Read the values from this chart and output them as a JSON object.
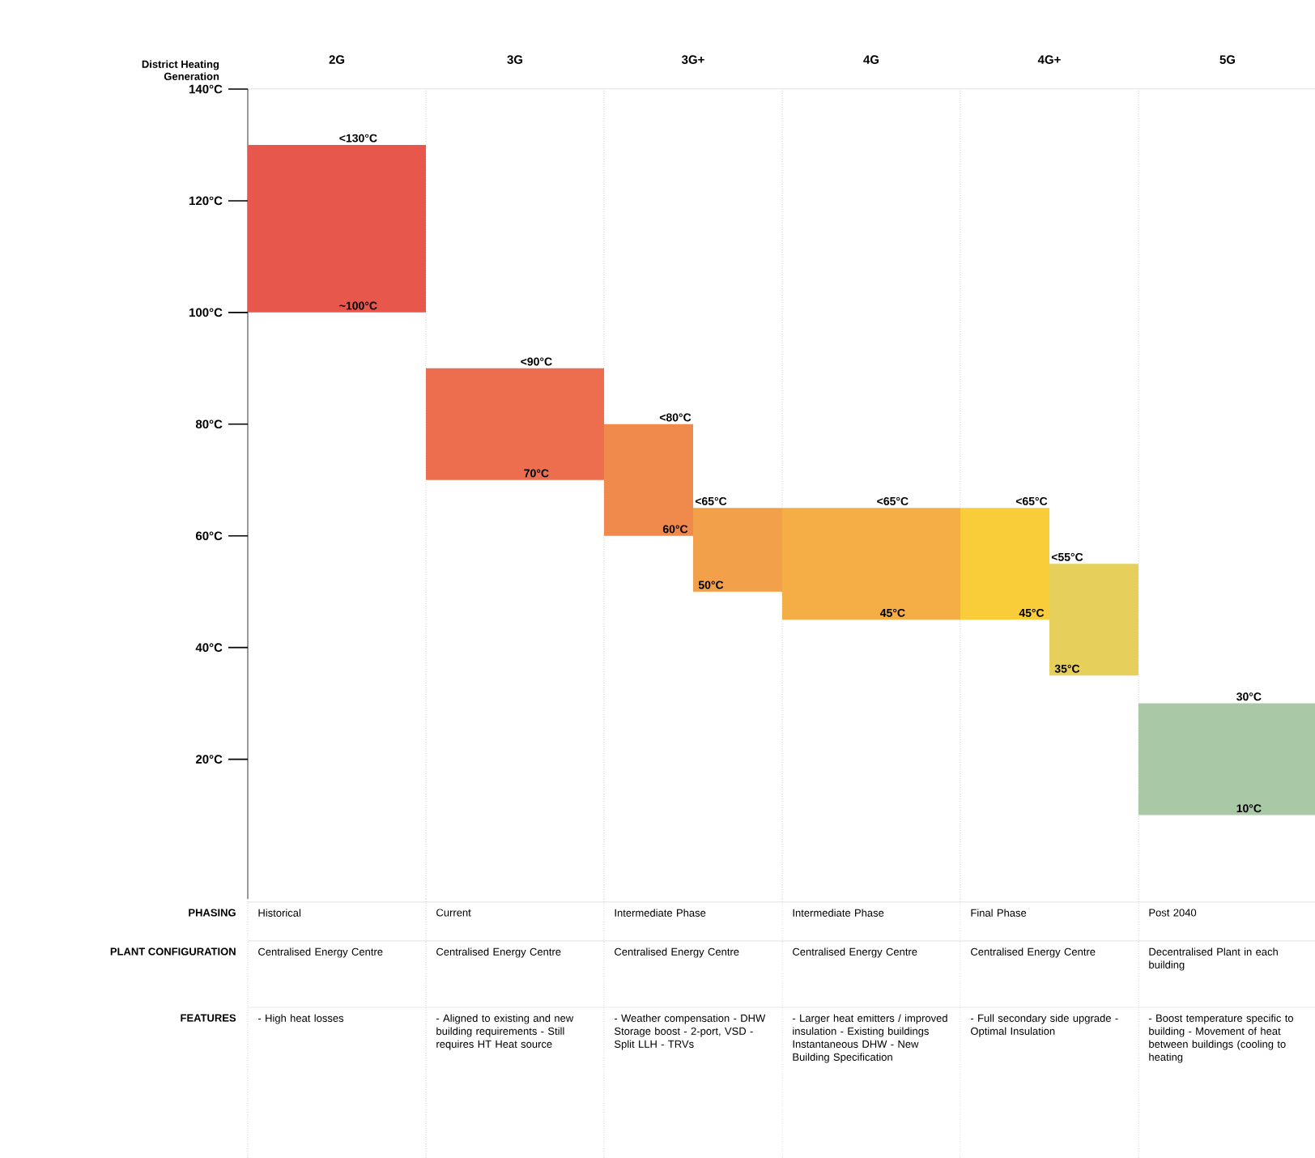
{
  "chart_data": {
    "type": "bar",
    "xlabel": "District Heating Generation",
    "categories": [
      "2G",
      "3G",
      "3G+",
      "4G",
      "4G+",
      "5G"
    ],
    "series": [
      {
        "base": [
          100,
          70,
          60,
          45,
          45,
          10
        ],
        "values": [
          30,
          20,
          20,
          20,
          20,
          20
        ],
        "colors": [
          "#e8574c",
          "#ec6e4e",
          "#f08a4c",
          "#f5ad46",
          "#f9cc3a",
          "#a9c8a6"
        ]
      },
      {
        "base": [
          null,
          null,
          50,
          null,
          35,
          null
        ],
        "values": [
          null,
          null,
          15,
          null,
          20,
          null
        ],
        "colors": [
          "#ffffff",
          "#ffffff",
          "#f2a04a",
          "#ffffff",
          "#e6cf5a",
          "#ffffff"
        ]
      }
    ],
    "ylim": [
      -5,
      140
    ],
    "yticks": [
      {
        "value": 20,
        "label": "20°C"
      },
      {
        "value": 40,
        "label": "40°C"
      },
      {
        "value": 60,
        "label": "60°C"
      },
      {
        "value": 80,
        "label": "80°C"
      },
      {
        "value": 100,
        "label": "100°C"
      },
      {
        "value": 120,
        "label": "120°C"
      },
      {
        "value": 140,
        "label": "140°C"
      }
    ],
    "grid": "x",
    "annotations": [
      {
        "text": "<130°C",
        "x": "2G",
        "y": 130
      },
      {
        "text": "~100°C",
        "x": "2G",
        "y": 100
      },
      {
        "text": "<90°C",
        "x": "3G",
        "y": 90
      },
      {
        "text": "70°C",
        "x": "3G",
        "y": 70
      },
      {
        "text": "<80°C",
        "x": "3G+",
        "y": 80
      },
      {
        "text": "60°C",
        "x": "3G+",
        "y": 60
      },
      {
        "text": "<65°C",
        "x": "3G+",
        "y": 65
      },
      {
        "text": "50°C",
        "x": "3G+",
        "y": 50
      },
      {
        "text": "<65°C",
        "x": "4G",
        "y": 65
      },
      {
        "text": "45°C",
        "x": "4G",
        "y": 45
      },
      {
        "text": "<65°C",
        "x": "4G+",
        "y": 65
      },
      {
        "text": "45°C",
        "x": "4G+",
        "y": 45
      },
      {
        "text": "<55°C",
        "x": "4G+",
        "y": 55
      },
      {
        "text": "35°C",
        "x": "4G+",
        "y": 35
      },
      {
        "text": "30°C",
        "x": "5G",
        "y": 30
      },
      {
        "text": "10°C",
        "x": "5G",
        "y": 10
      },
      "PHASING",
      "Historical",
      "Current",
      "Intermediate Phase",
      "Intermediate Phase",
      "Final Phase",
      "Post 2040",
      "PLANT CONFIGURATION",
      "Centralised Energy Centre",
      "Centralised Energy Centre",
      "Centralised Energy Centre",
      "Centralised Energy Centre",
      "Centralised Energy Centre",
      "Decentralised Plant in each building",
      "FEATURES",
      "- High heat losses",
      "- Aligned to existing and new building requirements - Still requires HT Heat source",
      "- Weather compensation - DHW Storage boost - 2-port, VSD - Split LLH - TRVs",
      "- Larger heat emitters / improved insulation - Existing buildings Instantaneous DHW - New Building Specification",
      "- Full secondary side upgrade - Optimal Insulation",
      "- Boost temperature specific to building - Movement of heat between buildings (cooling to heating"
    ]
  }
}
